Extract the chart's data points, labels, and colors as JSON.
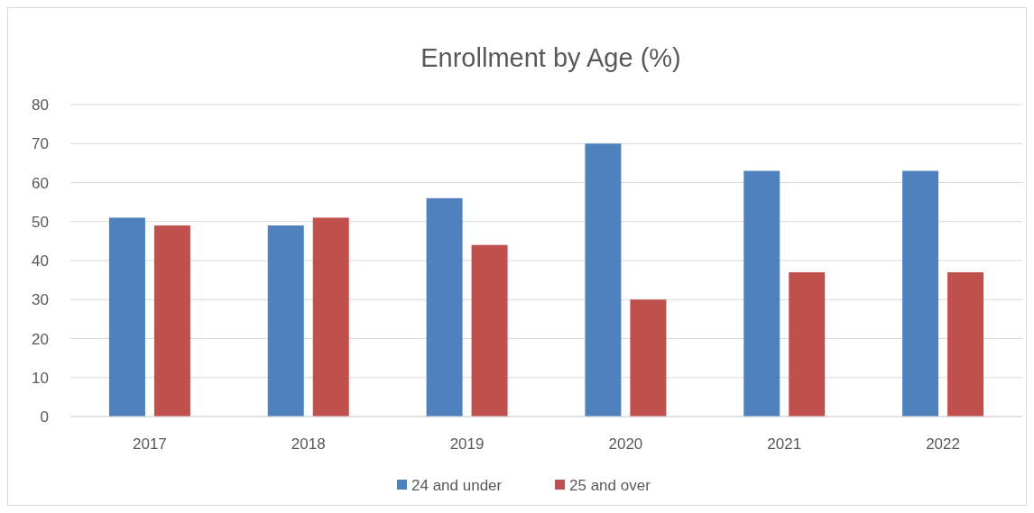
{
  "chart_data": {
    "type": "bar",
    "title": "Enrollment by Age (%)",
    "categories": [
      "2017",
      "2018",
      "2019",
      "2020",
      "2021",
      "2022"
    ],
    "series": [
      {
        "name": "24 and under",
        "color": "#4f81bd",
        "values": [
          51,
          49,
          56,
          70,
          63,
          63
        ]
      },
      {
        "name": "25 and over",
        "color": "#c0504d",
        "values": [
          49,
          51,
          44,
          30,
          37,
          37
        ]
      }
    ],
    "ylim": [
      0,
      80
    ],
    "yticks": [
      0,
      10,
      20,
      30,
      40,
      50,
      60,
      70,
      80
    ],
    "grid": "y",
    "legend": "bottom"
  }
}
